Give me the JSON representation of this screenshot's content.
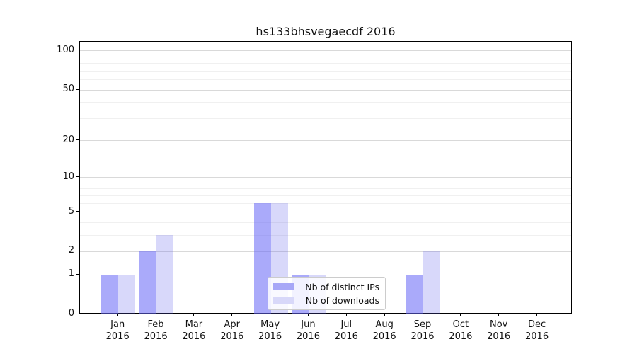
{
  "chart_data": {
    "type": "bar",
    "title": "hs133bhsvegaecdf 2016",
    "year": "2016",
    "categories": [
      "Jan",
      "Feb",
      "Mar",
      "Apr",
      "May",
      "Jun",
      "Jul",
      "Aug",
      "Sep",
      "Oct",
      "Nov",
      "Dec"
    ],
    "series": [
      {
        "name": "Nb of distinct IPs",
        "color": "#a7a7f7",
        "fill": "rgba(100,100,245,0.55)",
        "values": [
          1,
          2,
          0,
          0,
          6,
          1,
          0,
          0,
          1,
          0,
          0,
          0
        ]
      },
      {
        "name": "Nb of downloads",
        "color": "#d8d8f9",
        "fill": "rgba(90,90,235,0.24)",
        "values": [
          1,
          3,
          0,
          0,
          6,
          1,
          0,
          0,
          2,
          0,
          0,
          0
        ]
      }
    ],
    "xlabel": "",
    "ylabel": "",
    "y_axis": {
      "scale": "symlog (position proportional to log10(1+value))",
      "major_ticks": [
        0,
        1,
        2,
        5,
        10,
        20,
        50,
        100
      ],
      "minor_gridlines": [
        3,
        4,
        6,
        7,
        8,
        9,
        30,
        40,
        60,
        70,
        80,
        90
      ],
      "ylim": [
        0,
        117
      ]
    },
    "grid": "on",
    "legend_position": "lower center (inside plot)",
    "colors": {
      "grid_major": "#d9d9d9",
      "grid_minor": "#f0f0f0",
      "spine": "#000000",
      "legend_border": "#cccccc",
      "background": "#ffffff"
    }
  }
}
